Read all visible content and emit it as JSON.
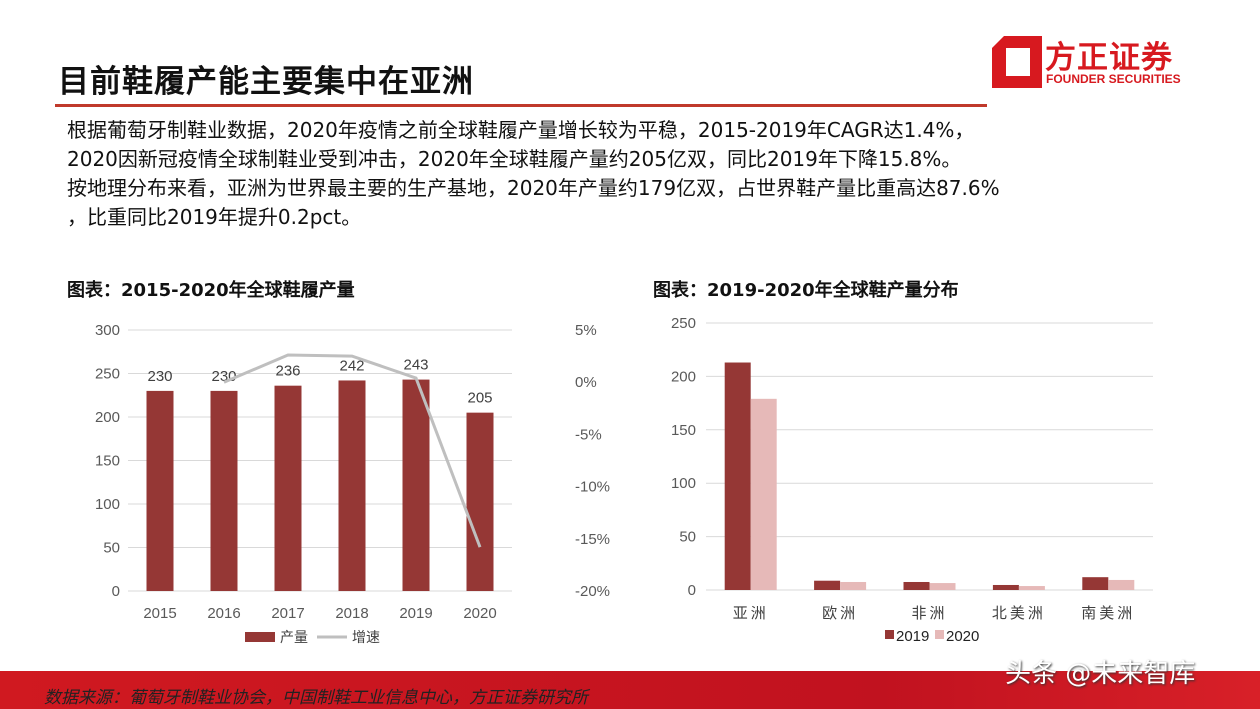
{
  "header": {
    "title": "目前鞋履产能主要集中在亚洲",
    "logo_cn": "方正证券",
    "logo_en": "FOUNDER SECURITIES"
  },
  "body": {
    "lines": [
      "根据葡萄牙制鞋业数据，2020年疫情之前全球鞋履产量增长较为平稳，2015-2019年CAGR达1.4%，",
      "2020因新冠疫情全球制鞋业受到冲击，2020年全球鞋履产量约205亿双，同比2019年下降15.8%。",
      "按地理分布来看，亚洲为世界最主要的生产基地，2020年产量约179亿双，占世界鞋产量比重高达87.6%",
      "，比重同比2019年提升0.2pct。"
    ]
  },
  "footer": {
    "source": "数据来源：葡萄牙制鞋业协会，中国制鞋工业信息中心，方正证券研究所",
    "watermark": "头条 @未来智库"
  },
  "chart_data": [
    {
      "type": "bar+line",
      "title": "图表：2015-2020年全球鞋履产量",
      "categories": [
        "2015",
        "2016",
        "2017",
        "2018",
        "2019",
        "2020"
      ],
      "series": [
        {
          "name": "产量",
          "type": "bar",
          "axis": "left",
          "values": [
            230,
            230,
            236,
            242,
            243,
            205
          ],
          "color": "#953735",
          "data_labels": [
            "230",
            "230",
            "236",
            "242",
            "243",
            "205"
          ]
        },
        {
          "name": "增速",
          "type": "line",
          "axis": "right",
          "values": [
            null,
            0.0,
            2.6,
            2.5,
            0.4,
            -15.8
          ],
          "color": "#bfbfbf"
        }
      ],
      "ylim_left": [
        0,
        300
      ],
      "yticks_left": [
        "0",
        "50",
        "100",
        "150",
        "200",
        "250",
        "300"
      ],
      "ylim_right": [
        -20,
        5
      ],
      "yticks_right": [
        "-20%",
        "-15%",
        "-10%",
        "-5%",
        "0%",
        "5%"
      ],
      "grid": true,
      "legend": "bottom"
    },
    {
      "type": "bar",
      "title": "图表：2019-2020年全球鞋产量分布",
      "categories": [
        "亚洲",
        "欧洲",
        "非洲",
        "北美洲",
        "南美洲"
      ],
      "series": [
        {
          "name": "2019",
          "values": [
            213,
            8.7,
            7.5,
            4.7,
            12
          ],
          "color": "#953735"
        },
        {
          "name": "2020",
          "values": [
            179,
            7.5,
            6.5,
            3.7,
            9.4
          ],
          "color": "#e6b9b8"
        }
      ],
      "ylim": [
        0,
        250
      ],
      "yticks": [
        "0",
        "50",
        "100",
        "150",
        "200",
        "250"
      ],
      "grid": true,
      "legend": "bottom"
    }
  ]
}
